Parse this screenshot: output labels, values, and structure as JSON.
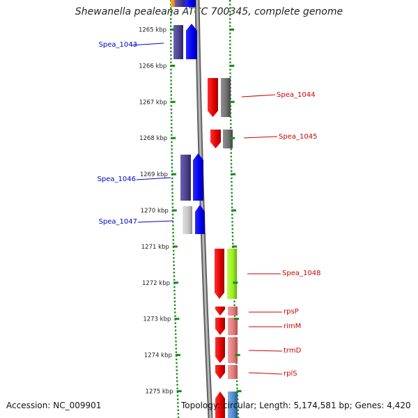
{
  "title": "Shewanella pealeana ATCC 700345, complete genome",
  "footer": {
    "accession": "Accession: NC_009901",
    "topology": "Topology: circular; Length: 5,174,581 bp; Genes: 4,420"
  },
  "ticks": [
    {
      "label": "1265 kbp",
      "kbp": 1265
    },
    {
      "label": "1266 kbp",
      "kbp": 1266
    },
    {
      "label": "1267 kbp",
      "kbp": 1267
    },
    {
      "label": "1268 kbp",
      "kbp": 1268
    },
    {
      "label": "1269 kbp",
      "kbp": 1269
    },
    {
      "label": "1270 kbp",
      "kbp": 1270
    },
    {
      "label": "1271 kbp",
      "kbp": 1271
    },
    {
      "label": "1272 kbp",
      "kbp": 1272
    },
    {
      "label": "1273 kbp",
      "kbp": 1273
    },
    {
      "label": "1274 kbp",
      "kbp": 1274
    },
    {
      "label": "1275 kbp",
      "kbp": 1275
    }
  ],
  "gene_labels": [
    {
      "name": "Spea_1043",
      "side": "left",
      "color": "#0000cc"
    },
    {
      "name": "Spea_1044",
      "side": "right",
      "color": "#cc0000"
    },
    {
      "name": "Spea_1045",
      "side": "right",
      "color": "#cc0000"
    },
    {
      "name": "Spea_1046",
      "side": "left",
      "color": "#0000cc"
    },
    {
      "name": "Spea_1047",
      "side": "left",
      "color": "#0000cc"
    },
    {
      "name": "Spea_1048",
      "side": "right",
      "color": "#cc0000"
    },
    {
      "name": "rpsP",
      "side": "right",
      "color": "#cc0000"
    },
    {
      "name": "rimM",
      "side": "right",
      "color": "#cc0000"
    },
    {
      "name": "trmD",
      "side": "right",
      "color": "#cc0000"
    },
    {
      "name": "rplS",
      "side": "right",
      "color": "#cc0000"
    }
  ],
  "colors": {
    "backbone": "#808080",
    "tick": "#1a8a1a",
    "reverse_strand_gene": "#0000ff",
    "reverse_strand_cog": "#4b3f8f",
    "forward_strand_gene": "#ff0000",
    "forward_strand_cog": "#707070",
    "cog_green": "#99ee22",
    "cog_pink": "#e07a7a",
    "cog_lightgray": "#c8c8c8"
  }
}
